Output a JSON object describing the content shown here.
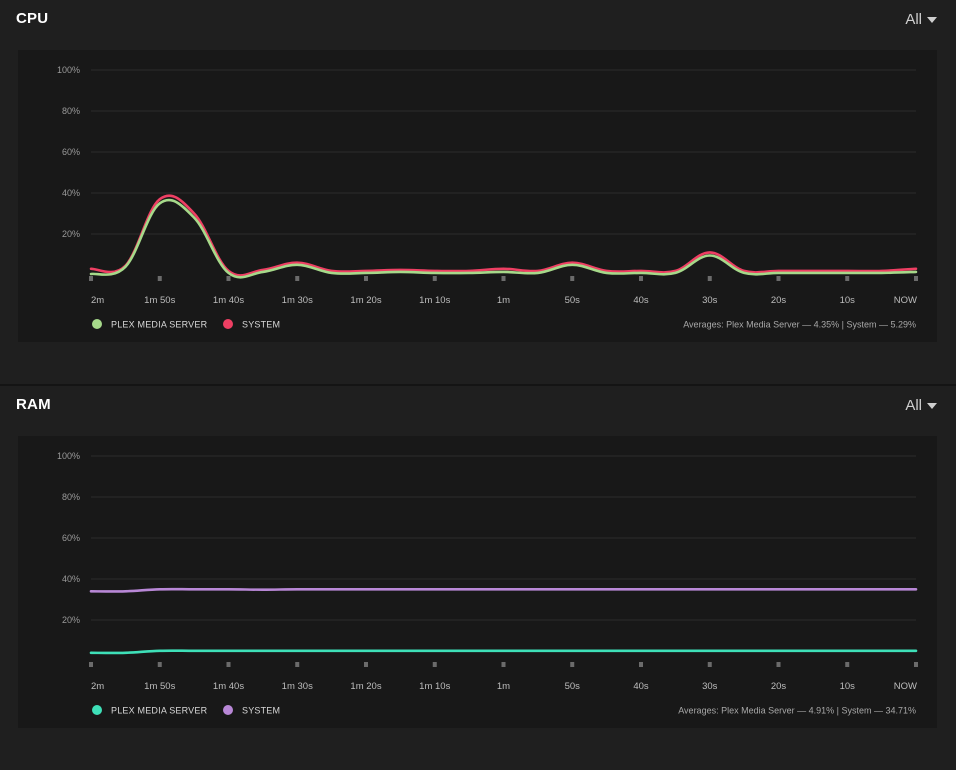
{
  "sections": [
    {
      "id": "cpu",
      "title": "CPU",
      "range_label": "All",
      "averages": "Averages: Plex Media Server — 4.35% | System — 5.29%",
      "legend": [
        {
          "label": "PLEX MEDIA SERVER",
          "color": "#a6d98a"
        },
        {
          "label": "SYSTEM",
          "color": "#ee3f63"
        }
      ]
    },
    {
      "id": "ram",
      "title": "RAM",
      "range_label": "All",
      "averages": "Averages: Plex Media Server — 4.91% | System — 34.71%",
      "legend": [
        {
          "label": "PLEX MEDIA SERVER",
          "color": "#3ee0b8"
        },
        {
          "label": "SYSTEM",
          "color": "#b887d6"
        }
      ]
    }
  ],
  "chart_data": [
    {
      "type": "line",
      "title": "CPU",
      "ylim": [
        0,
        100
      ],
      "yticks": [
        "100%",
        "80%",
        "60%",
        "40%",
        "20%"
      ],
      "x_labels": [
        "2m",
        "1m 50s",
        "1m 40s",
        "1m 30s",
        "1m 20s",
        "1m 10s",
        "1m",
        "50s",
        "40s",
        "30s",
        "20s",
        "10s",
        "NOW"
      ],
      "x_seconds_ago": [
        120,
        115,
        110,
        105,
        100,
        95,
        90,
        85,
        80,
        75,
        70,
        65,
        60,
        55,
        50,
        45,
        40,
        35,
        30,
        25,
        20,
        15,
        10,
        5,
        0
      ],
      "series": [
        {
          "name": "SYSTEM",
          "color": "#ee3f63",
          "values": [
            3,
            4.5,
            37,
            30,
            2,
            2.5,
            6,
            2,
            2,
            2.5,
            2,
            2,
            3,
            2,
            6,
            2,
            2,
            2,
            11,
            2,
            2,
            2,
            2,
            2,
            3
          ]
        },
        {
          "name": "PLEX MEDIA SERVER",
          "color": "#a6d98a",
          "values": [
            0.5,
            4,
            35,
            28,
            1,
            1.5,
            5,
            1,
            1,
            1.5,
            1,
            1,
            1.5,
            1,
            5,
            1,
            1,
            1,
            9.5,
            1,
            1,
            1,
            1,
            1,
            1.5
          ]
        }
      ]
    },
    {
      "type": "line",
      "title": "RAM",
      "ylim": [
        0,
        100
      ],
      "yticks": [
        "100%",
        "80%",
        "60%",
        "40%",
        "20%"
      ],
      "x_labels": [
        "2m",
        "1m 50s",
        "1m 40s",
        "1m 30s",
        "1m 20s",
        "1m 10s",
        "1m",
        "50s",
        "40s",
        "30s",
        "20s",
        "10s",
        "NOW"
      ],
      "x_seconds_ago": [
        120,
        115,
        110,
        105,
        100,
        95,
        90,
        85,
        80,
        75,
        70,
        65,
        60,
        55,
        50,
        45,
        40,
        35,
        30,
        25,
        20,
        15,
        10,
        5,
        0
      ],
      "series": [
        {
          "name": "SYSTEM",
          "color": "#b887d6",
          "values": [
            34,
            34,
            35,
            35,
            35,
            34.8,
            35,
            35,
            35,
            35,
            35,
            35,
            35,
            35,
            35,
            35,
            35,
            35,
            35,
            35,
            35,
            35,
            35,
            35,
            35
          ]
        },
        {
          "name": "PLEX MEDIA SERVER",
          "color": "#3ee0b8",
          "values": [
            4,
            4,
            5,
            5,
            5,
            5,
            5,
            5,
            5,
            5,
            5,
            5,
            5,
            5,
            5,
            5,
            5,
            5,
            5,
            5,
            5,
            5,
            5,
            5,
            5
          ]
        }
      ]
    }
  ]
}
